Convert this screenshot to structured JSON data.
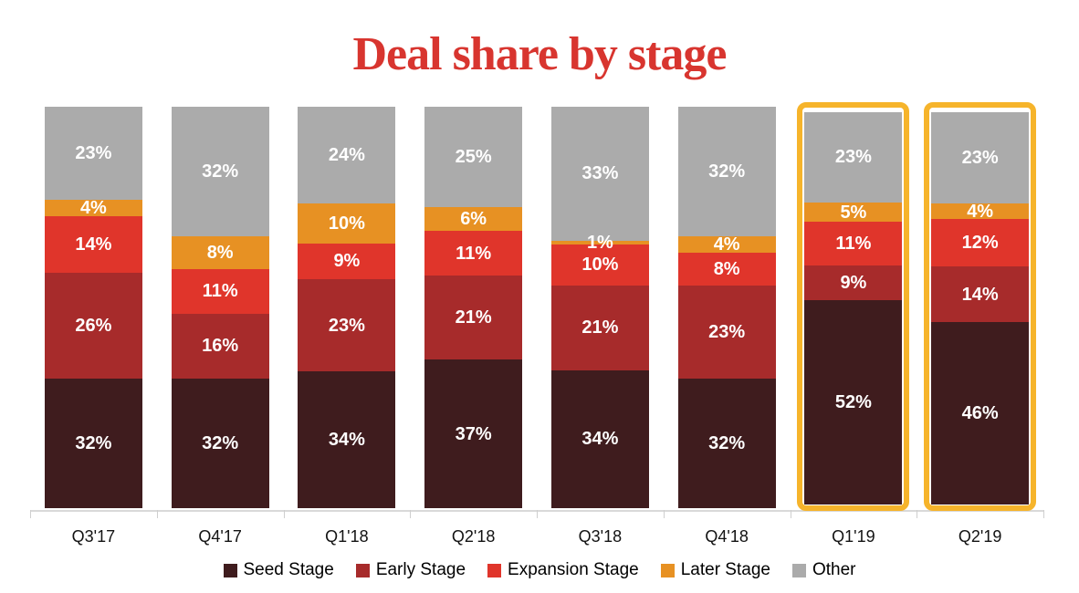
{
  "title": "Deal share by stage",
  "chart_data": {
    "type": "bar",
    "stacked": true,
    "percent_stacked": true,
    "unit": "%",
    "title": "Deal share by stage",
    "title_color": "#D8352F",
    "categories": [
      "Q3'17",
      "Q4'17",
      "Q1'18",
      "Q2'18",
      "Q3'18",
      "Q4'18",
      "Q1'19",
      "Q2'19"
    ],
    "series": [
      {
        "name": "Seed Stage",
        "color": "#3F1C1E",
        "values": [
          32,
          32,
          34,
          37,
          34,
          32,
          52,
          46
        ]
      },
      {
        "name": "Early Stage",
        "color": "#A72B2B",
        "values": [
          26,
          16,
          23,
          21,
          21,
          23,
          9,
          14
        ]
      },
      {
        "name": "Expansion Stage",
        "color": "#E0352B",
        "values": [
          14,
          11,
          9,
          11,
          10,
          8,
          11,
          12
        ]
      },
      {
        "name": "Later Stage",
        "color": "#E79123",
        "values": [
          4,
          8,
          10,
          6,
          1,
          4,
          5,
          4
        ]
      },
      {
        "name": "Other",
        "color": "#ABABAB",
        "values": [
          23,
          32,
          24,
          25,
          33,
          32,
          23,
          23
        ]
      }
    ],
    "value_label_color": "#FFFFFF",
    "value_label_suffix": "%",
    "highlighted_categories": [
      "Q1'19",
      "Q2'19"
    ],
    "highlight_color": "#F6B42B",
    "legend_position": "bottom",
    "legend_entries": [
      "Seed Stage",
      "Early Stage",
      "Expansion Stage",
      "Later Stage",
      "Other"
    ],
    "grid": "off",
    "y_axis": "hidden",
    "x_axis_line_color": "#D9D9D9"
  }
}
